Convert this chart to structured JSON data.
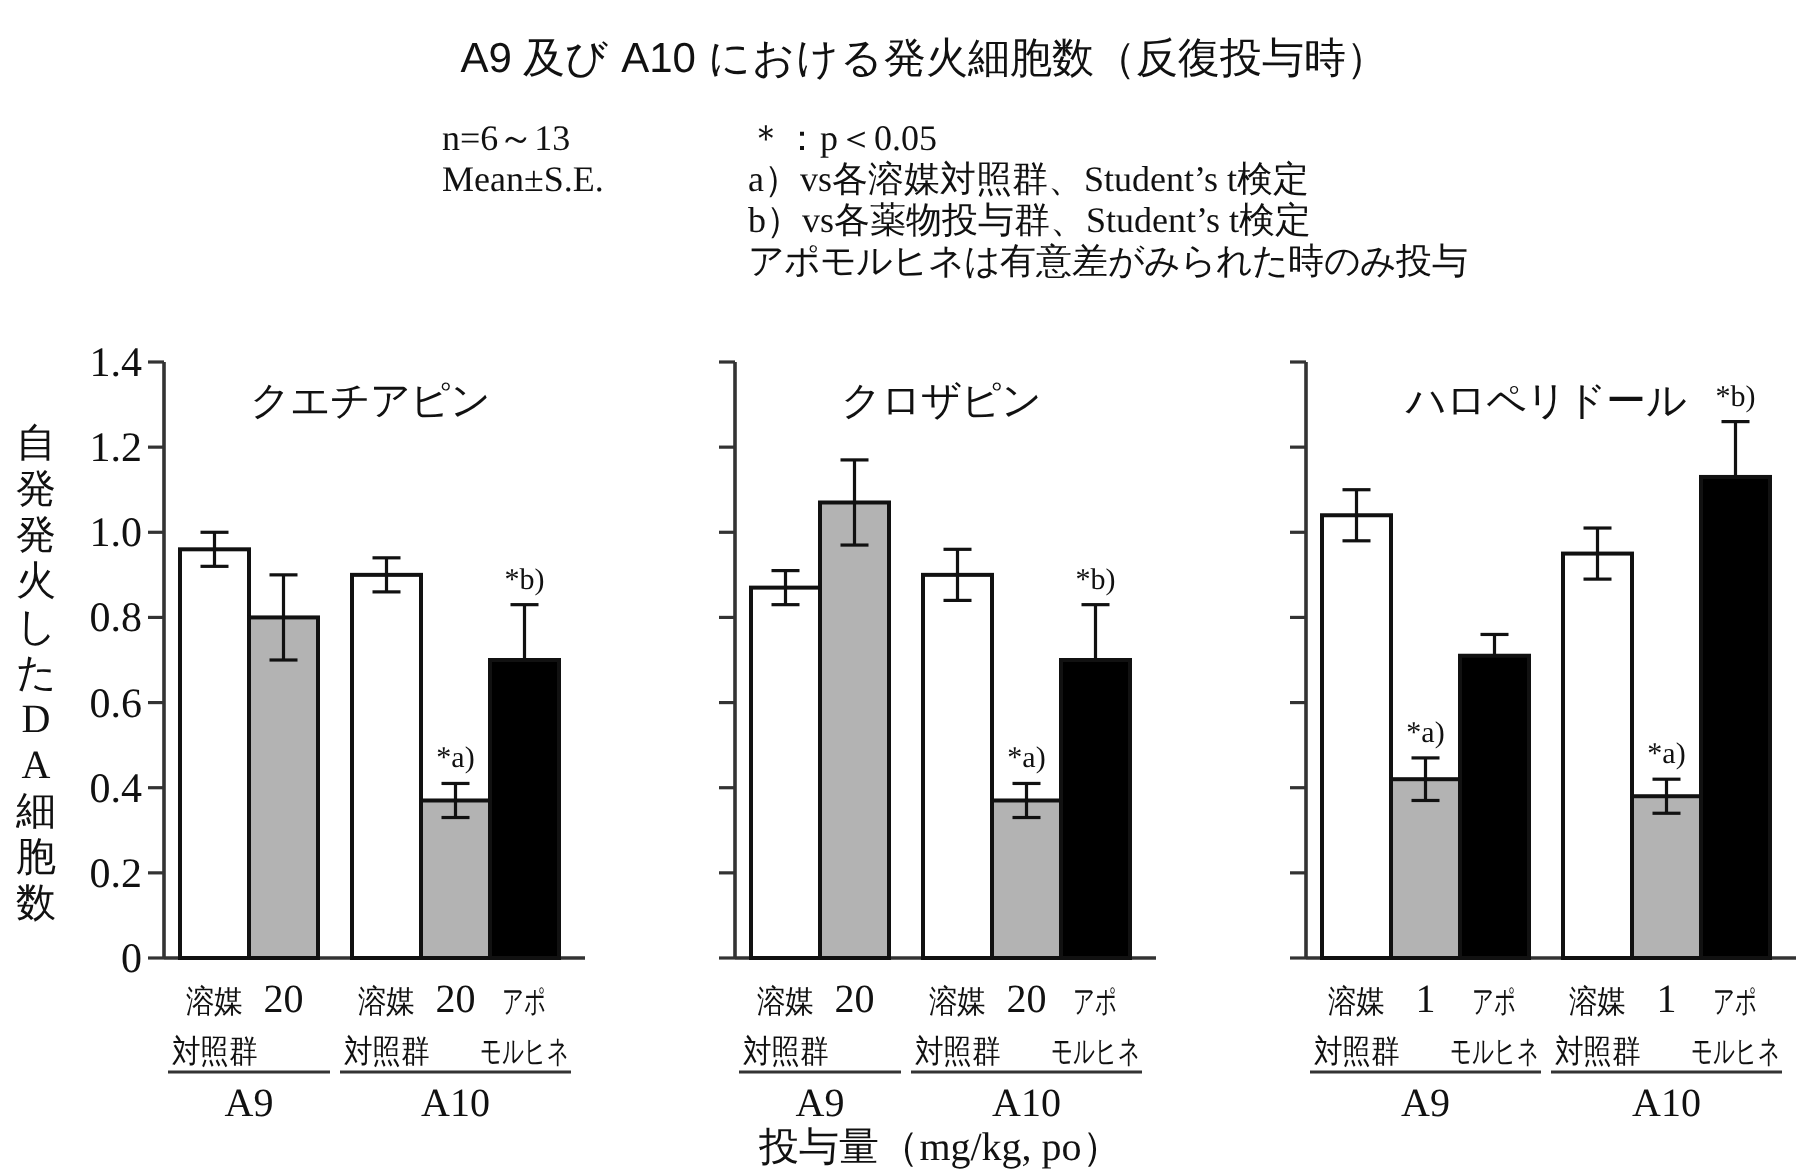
{
  "chart_data": [
    {
      "type": "other",
      "title": "A9 及び A10 における発火細胞数（反復投与時）",
      "annotations": [
        "n=6～13",
        "Mean±S.E.",
        "＊：p＜0.05",
        "a）vs各溶媒対照群、Student’s t検定",
        "b）vs各薬物投与群、Student’s t検定",
        "アポモルヒネは有意差がみられた時のみ投与"
      ]
    },
    {
      "type": "bar",
      "title": "クエチアピン",
      "ylabel": "自発発火したDA細胞数",
      "categories": [
        "A9",
        "A10"
      ],
      "series": [
        {
          "name": "溶媒対照群",
          "color": "#ffffff",
          "values": [
            0.96,
            0.9
          ],
          "errors": [
            0.04,
            0.04
          ]
        },
        {
          "name": "20",
          "color": "#b3b3b3",
          "values": [
            0.8,
            0.37
          ],
          "errors": [
            0.1,
            0.04
          ],
          "value_labels": [
            null,
            "*a)"
          ]
        },
        {
          "name": "アポモルヒネ",
          "color": "#000000",
          "values": [
            null,
            0.7
          ],
          "errors": [
            null,
            [
              0.7,
              0.83
            ]
          ],
          "value_labels": [
            null,
            "*b)"
          ]
        }
      ],
      "ylim": [
        0,
        1.4
      ],
      "yticks": [
        0,
        0.2,
        0.4,
        0.6,
        0.8,
        {
          "value": 1,
          "label": "1.0"
        },
        1.2,
        1.4
      ]
    },
    {
      "type": "bar",
      "title": "クロザピン",
      "xlabel": "投与量（mg/kg, po）",
      "categories": [
        "A9",
        "A10"
      ],
      "series": [
        {
          "name": "溶媒対照群",
          "color": "#ffffff",
          "values": [
            0.87,
            0.9
          ],
          "errors": [
            0.04,
            0.06
          ]
        },
        {
          "name": "20",
          "color": "#b3b3b3",
          "values": [
            1.07,
            0.37
          ],
          "errors": [
            0.1,
            0.04
          ],
          "value_labels": [
            null,
            "*a)"
          ]
        },
        {
          "name": "アポモルヒネ",
          "color": "#000000",
          "values": [
            null,
            0.7
          ],
          "errors": [
            null,
            [
              0.7,
              0.83
            ]
          ],
          "value_labels": [
            null,
            "*b)"
          ]
        }
      ],
      "ylim": [
        0,
        1.4
      ],
      "yticks": [
        0,
        0.2,
        0.4,
        0.6,
        0.8,
        1,
        1.2,
        1.4
      ],
      "tick_labels": "x"
    },
    {
      "type": "bar",
      "title": "ハロペリドール",
      "categories": [
        "A9",
        "A10"
      ],
      "series": [
        {
          "name": "溶媒対照群",
          "color": "#ffffff",
          "values": [
            1.04,
            0.95
          ],
          "errors": [
            0.06,
            0.06
          ]
        },
        {
          "name": "1",
          "color": "#b3b3b3",
          "values": [
            0.42,
            0.38
          ],
          "errors": [
            0.05,
            0.04
          ],
          "value_labels": [
            "*a)",
            "*a)"
          ]
        },
        {
          "name": "アポモルヒネ",
          "color": "#000000",
          "values": [
            0.71,
            1.13
          ],
          "errors": [
            [
              0.71,
              0.76
            ],
            [
              1.13,
              1.26
            ]
          ],
          "value_labels": [
            null,
            "*b)"
          ]
        }
      ],
      "ylim": [
        0,
        1.4
      ],
      "yticks": [
        0,
        0.2,
        0.4,
        0.6,
        0.8,
        1,
        1.2,
        1.4
      ],
      "tick_labels": "x"
    }
  ]
}
